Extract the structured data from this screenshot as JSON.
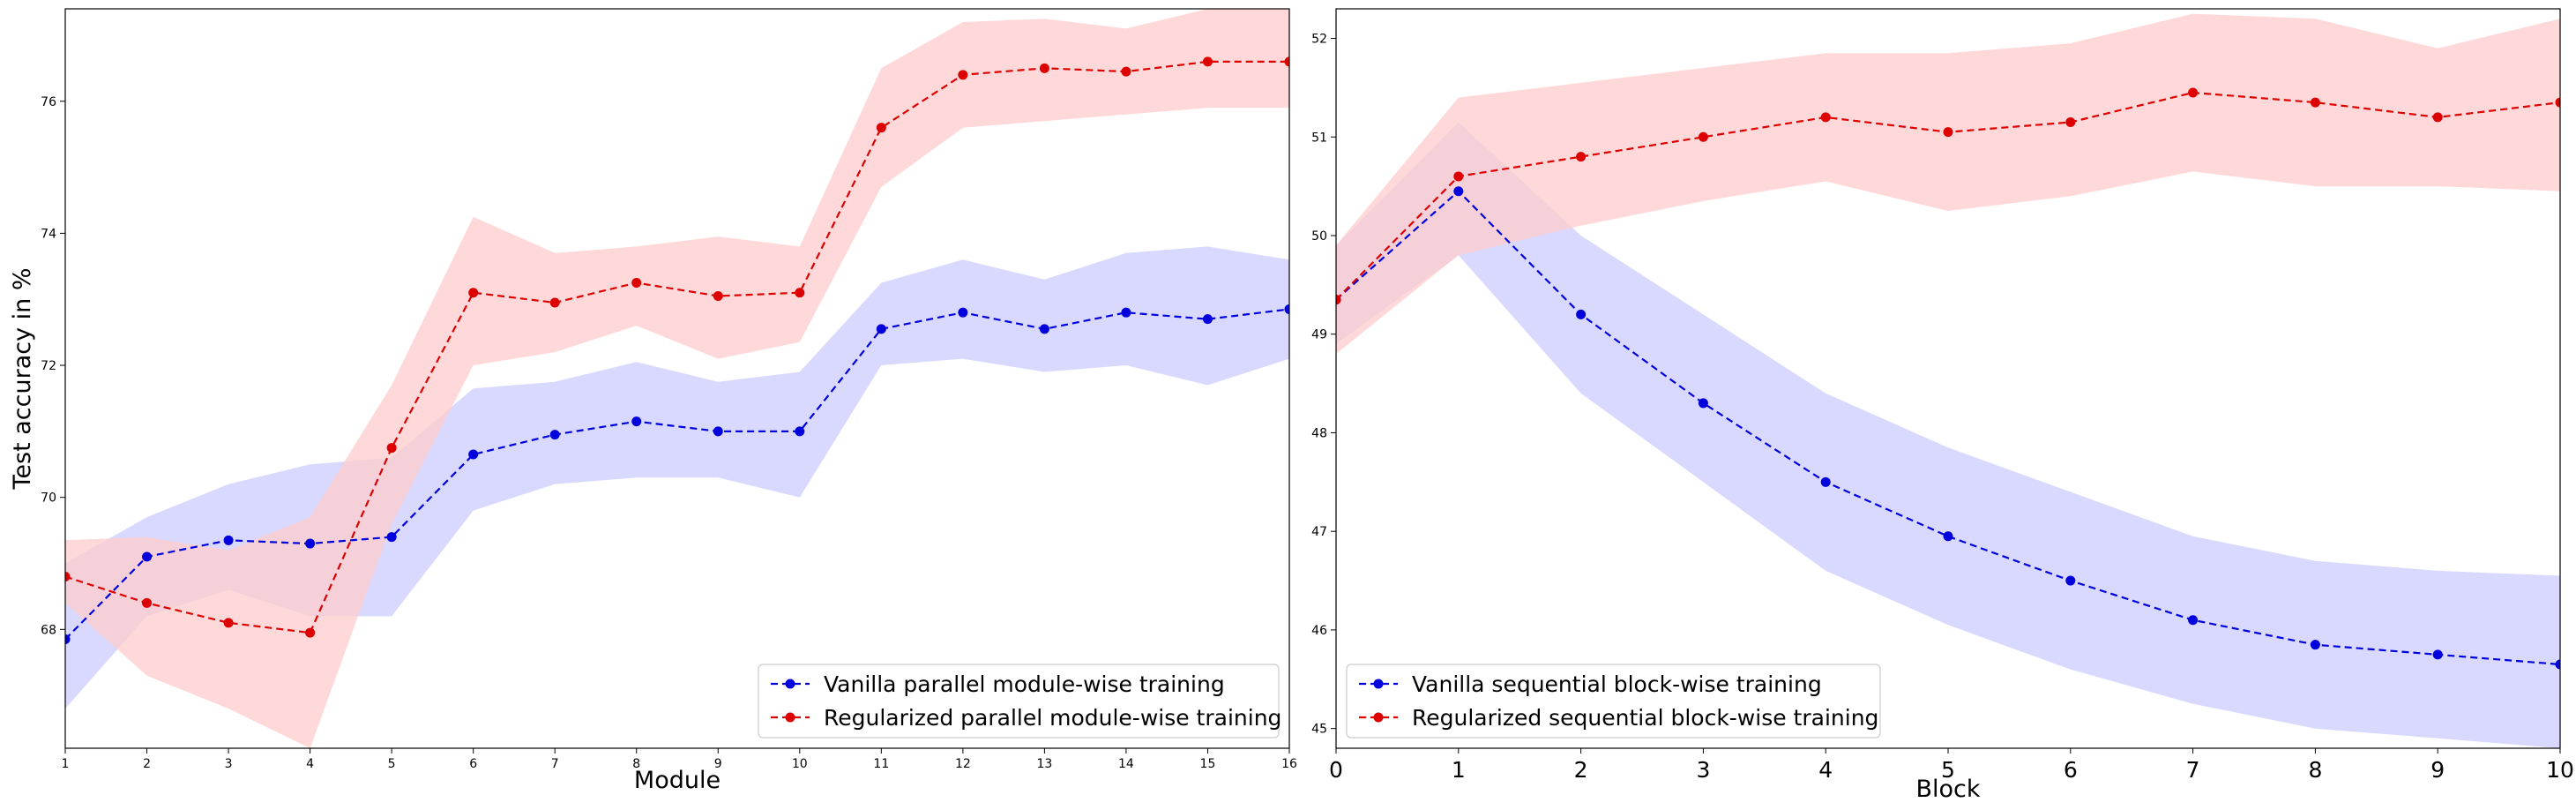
{
  "chart_data": [
    {
      "type": "line",
      "xlabel": "Module",
      "ylabel": "Test accuracy in %",
      "xlim": [
        1,
        16
      ],
      "ylim": [
        66.2,
        77.4
      ],
      "xticks": [
        "1",
        "2",
        "3",
        "4",
        "5",
        "6",
        "7",
        "8",
        "9",
        "10",
        "11",
        "12",
        "13",
        "14",
        "15",
        "16"
      ],
      "yticks": [
        "68",
        "70",
        "72",
        "74",
        "76"
      ],
      "x": [
        1,
        2,
        3,
        4,
        5,
        6,
        7,
        8,
        9,
        10,
        11,
        12,
        13,
        14,
        15,
        16
      ],
      "legend_position": "lower-right",
      "series": [
        {
          "name": "Vanilla parallel module-wise training",
          "color": "#0000dd",
          "band_color": "#ccccff",
          "values": [
            67.85,
            69.1,
            69.35,
            69.3,
            69.4,
            70.65,
            70.95,
            71.15,
            71.0,
            71.0,
            72.55,
            72.8,
            72.55,
            72.8,
            72.7,
            72.85
          ],
          "lower": [
            66.8,
            68.2,
            68.6,
            68.2,
            68.2,
            69.8,
            70.2,
            70.3,
            70.3,
            70.0,
            72.0,
            72.1,
            71.9,
            72.0,
            71.7,
            72.1
          ],
          "upper": [
            69.0,
            69.7,
            70.2,
            70.5,
            70.6,
            71.65,
            71.75,
            72.05,
            71.75,
            71.9,
            73.25,
            73.6,
            73.3,
            73.7,
            73.8,
            73.6
          ]
        },
        {
          "name": "Regularized parallel module-wise training",
          "color": "#dd0000",
          "band_color": "#ffcccc",
          "values": [
            68.8,
            68.4,
            68.1,
            67.95,
            70.75,
            73.1,
            72.95,
            73.25,
            73.05,
            73.1,
            75.6,
            76.4,
            76.5,
            76.45,
            76.6,
            76.6
          ],
          "lower": [
            68.4,
            67.3,
            66.8,
            66.2,
            69.6,
            72.0,
            72.2,
            72.6,
            72.1,
            72.35,
            74.7,
            75.6,
            75.7,
            75.8,
            75.9,
            75.9
          ],
          "upper": [
            69.35,
            69.4,
            69.2,
            69.7,
            71.7,
            74.25,
            73.7,
            73.8,
            73.95,
            73.8,
            76.5,
            77.2,
            77.25,
            77.1,
            77.4,
            77.4
          ]
        }
      ]
    },
    {
      "type": "line",
      "xlabel": "Block",
      "ylabel": "",
      "xlim": [
        0,
        10
      ],
      "ylim": [
        44.8,
        52.3
      ],
      "xticks": [
        "0",
        "1",
        "2",
        "3",
        "4",
        "5",
        "6",
        "7",
        "8",
        "9",
        "10"
      ],
      "yticks": [
        "45",
        "46",
        "47",
        "48",
        "49",
        "50",
        "51",
        "52"
      ],
      "x": [
        0,
        1,
        2,
        3,
        4,
        5,
        6,
        7,
        8,
        9,
        10
      ],
      "legend_position": "lower-left",
      "series": [
        {
          "name": "Vanilla sequential block-wise training",
          "color": "#0000dd",
          "band_color": "#ccccff",
          "values": [
            49.35,
            50.45,
            49.2,
            48.3,
            47.5,
            46.95,
            46.5,
            46.1,
            45.85,
            45.75,
            45.65
          ],
          "lower": [
            48.9,
            49.8,
            48.4,
            47.5,
            46.6,
            46.05,
            45.6,
            45.25,
            45.0,
            44.9,
            44.8
          ],
          "upper": [
            49.9,
            51.15,
            50.0,
            49.2,
            48.4,
            47.85,
            47.4,
            46.95,
            46.7,
            46.6,
            46.55
          ]
        },
        {
          "name": "Regularized sequential block-wise training",
          "color": "#dd0000",
          "band_color": "#ffcccc",
          "values": [
            49.35,
            50.6,
            50.8,
            51.0,
            51.2,
            51.05,
            51.15,
            51.45,
            51.35,
            51.2,
            51.35
          ],
          "lower": [
            48.8,
            49.8,
            50.1,
            50.35,
            50.55,
            50.25,
            50.4,
            50.65,
            50.5,
            50.5,
            50.45
          ],
          "upper": [
            49.9,
            51.4,
            51.55,
            51.7,
            51.85,
            51.85,
            51.95,
            52.25,
            52.2,
            51.9,
            52.2
          ]
        }
      ]
    }
  ]
}
